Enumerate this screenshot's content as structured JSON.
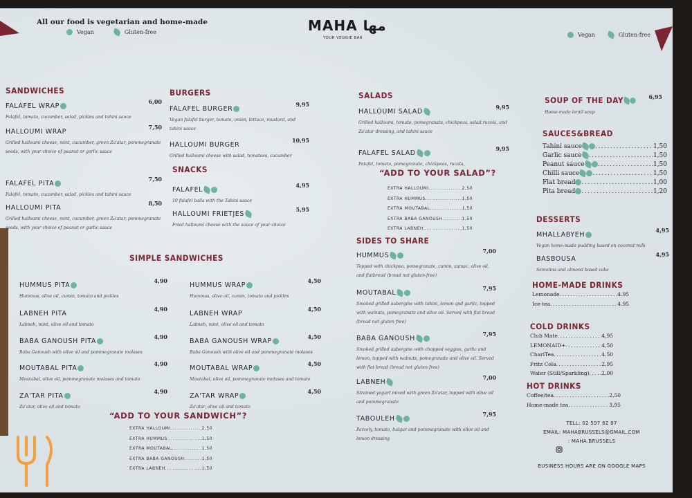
{
  "header": {
    "tagline": "All our food is vegetarian and home-made",
    "legend": {
      "vegan": "Vegan",
      "gluten_free": "Gluten-free"
    },
    "logo": "MAHA مها",
    "logo_sub": "YOUR VEGGIE BAR"
  },
  "colors": {
    "accent": "#7b2433",
    "vegan_icon": "#6db3a0",
    "paper": "#dfe6ea"
  },
  "sections": {
    "sandwiches": {
      "title": "SANDWICHES",
      "items": [
        {
          "name": "FALAFEL WRAP",
          "price": "6,00",
          "desc": "Falafel, tomato, cucumber, salad, pickles and tahini sauce",
          "vegan": true,
          "gf": false
        },
        {
          "name": "HALLOUMI WRAP",
          "price": "7,50",
          "desc": "Grilled halloumi cheese, mint, cucumber, green Za'atar, pommegranate seeds, with your choice of peanut or garlic sauce",
          "vegan": false,
          "gf": false
        },
        {
          "name": "FALAFEL PITA",
          "price": "7,50",
          "desc": "Falafel, tomato, cucumber, salad, pickles and tahini sauce",
          "vegan": true,
          "gf": false
        },
        {
          "name": "HALLOUMI PITA",
          "price": "8,50",
          "desc": "Grilled halloumi cheese, mint, cucumber, green Za'atar, pommegranate seeds, with your choice of peanut or garlic sauce",
          "vegan": false,
          "gf": false
        }
      ]
    },
    "burgers": {
      "title": "BURGERS",
      "items": [
        {
          "name": "FALAFEL BURGER",
          "price": "9,95",
          "desc": "Vegan falafel burger, tomato, onion, lettuce, mustard, and tahini sauce",
          "vegan": true,
          "gf": false
        },
        {
          "name": "HALLOUMI BURGER",
          "price": "10,95",
          "desc": "Grilled halloumi cheese with salad, tomatoes, cucumber",
          "vegan": false,
          "gf": false
        }
      ]
    },
    "snacks": {
      "title": "SNACKS",
      "items": [
        {
          "name": "FALAFEL",
          "price": "4,95",
          "desc": "10 falafel balls with the Tahini sauce",
          "vegan": true,
          "gf": true
        },
        {
          "name": "HALLOUMI FRIETJES",
          "price": "5,95",
          "desc": "Fried halloumi cheese with the sauce of your choice",
          "vegan": false,
          "gf": true
        }
      ]
    },
    "simple_sandwiches": {
      "title": "SIMPLE SANDWICHES"
    },
    "pitas": {
      "items": [
        {
          "name": "HUMMUS PITA",
          "price": "4,90",
          "desc": "Hummus, olive oil, cumin, tomato and pickles",
          "vegan": true,
          "gf": false
        },
        {
          "name": "LABNEH PITA",
          "price": "4,90",
          "desc": "Labneh, mint, olive oil and tomato",
          "vegan": false,
          "gf": false
        },
        {
          "name": "BABA GANOUSH PITA",
          "price": "4,90",
          "desc": "Baba Ganoush with olive oil and pommegranate molases",
          "vegan": true,
          "gf": false
        },
        {
          "name": "MOUTABAL PITA",
          "price": "4,90",
          "desc": "Moutabal, olive oil, pommegranate molases and tomato",
          "vegan": true,
          "gf": false
        },
        {
          "name": "ZA'TAR PITA",
          "price": "4,90",
          "desc": "Za'atar, olive oil and tomato",
          "vegan": true,
          "gf": false
        }
      ]
    },
    "wraps": {
      "items": [
        {
          "name": "HUMMUS WRAP",
          "price": "4,50",
          "desc": "Hummus, olive oil, cumin, tomato and pickles",
          "vegan": true,
          "gf": false
        },
        {
          "name": "LABNEH WRAP",
          "price": "4,50",
          "desc": "Labneh, mint, olive oil and tomato",
          "vegan": false,
          "gf": false
        },
        {
          "name": "BABA GANOUSH WRAP",
          "price": "4,50",
          "desc": "Baba Ganoush with olive oil and pommegranate molases",
          "vegan": true,
          "gf": false
        },
        {
          "name": "MOUTABAL WRAP",
          "price": "4,50",
          "desc": "Moutabal, olive oil, pommegranate molases and tomato",
          "vegan": true,
          "gf": false
        },
        {
          "name": "ZA'TAR WRAP",
          "price": "4,50",
          "desc": "Za'atar, olive oil and tomato",
          "vegan": true,
          "gf": false
        }
      ]
    },
    "add_sandwich": {
      "title": "“ADD TO YOUR SANDWICH”?",
      "items": [
        {
          "name": "EXTRA HALLOUMI",
          "price": "2,50"
        },
        {
          "name": "EXTRA HUMMUS",
          "price": "1,50"
        },
        {
          "name": "EXTRA MOUTABAL",
          "price": "1,50"
        },
        {
          "name": "EXTRA BABA GANOUSH",
          "price": "1,50"
        },
        {
          "name": "EXTRA LABNEH",
          "price": "1,50"
        }
      ]
    },
    "salads": {
      "title": "SALADS",
      "items": [
        {
          "name": "HALLOUMI SALAD",
          "price": "9,95",
          "desc": "Grilled halloumi, tomato, pomegranate, chickpeas, salad,rucola, and Za'atar dressing, and tahini sauce",
          "vegan": false,
          "gf": true
        },
        {
          "name": "FALAFEL SALAD",
          "price": "9,95",
          "desc": "Falafel, tomato, pomegranate, chickpeas, rucola,",
          "vegan": true,
          "gf": true
        }
      ]
    },
    "add_salad": {
      "title": "“ADD TO YOUR SALAD”?",
      "items": [
        {
          "name": "EXTRA HALLOUMI",
          "price": "2,50"
        },
        {
          "name": "EXTRA HUMMUS",
          "price": "1,50"
        },
        {
          "name": "EXTRA MOUTABAL",
          "price": "1,50"
        },
        {
          "name": "EXTRA BABA GANOUSH",
          "price": "1,50"
        },
        {
          "name": "EXTRA LABNEH",
          "price": "1,50"
        }
      ]
    },
    "sides": {
      "title": "SIDES TO SHARE",
      "items": [
        {
          "name": "HUMMUS",
          "price": "7,00",
          "desc": "Topped with chickpea, pomegranate, cumin, sumac, olive oil, and flatbread (bread not gluten-free)",
          "vegan": true,
          "gf": true
        },
        {
          "name": "MOUTABAL",
          "price": "7,95",
          "desc": "Smoked grilled aubergine with tahini, lemon qnd garlic, topped with walnuts, pomegranate and olive oil. Served with flat bread (bread not gluten free)",
          "vegan": true,
          "gf": true
        },
        {
          "name": "BABA GANOUSH",
          "price": "7,95",
          "desc": "Smoked grilled aubergine with chopped veggies, garlic and lemon, topped with walnuts, pomegranate and olive oil. Served with flat bread (bread not gluten free)",
          "vegan": true,
          "gf": true
        },
        {
          "name": "LABNEH",
          "price": "7,00",
          "desc": "Strained yogurt mixed with green Za'atar, topped with olive oil and pommegranate",
          "vegan": false,
          "gf": true
        },
        {
          "name": "TABOULEH",
          "price": "7,95",
          "desc": "Parcely, tomato, bulgur and pommegranate with olive oil and lemon dressing",
          "vegan": true,
          "gf": true
        }
      ]
    },
    "soup": {
      "title": "SOUP OF THE DAY",
      "price": "6,95",
      "desc": "Home-made lentil soup",
      "vegan": true,
      "gf": true
    },
    "sauces": {
      "title": "SAUCES&BREAD",
      "items": [
        {
          "name": "Tahini sauce",
          "price": "1,50",
          "vegan": true,
          "gf": true
        },
        {
          "name": "Garlic sauce",
          "price": "1,50",
          "vegan": false,
          "gf": true
        },
        {
          "name": "Peanut sauce",
          "price": "1,50",
          "vegan": true,
          "gf": true
        },
        {
          "name": "Chilli sauce",
          "price": "1,50",
          "vegan": true,
          "gf": true
        },
        {
          "name": "Flat bread",
          "price": "1,00",
          "vegan": true,
          "gf": false
        },
        {
          "name": "Pita bread",
          "price": "1,20",
          "vegan": true,
          "gf": false
        }
      ]
    },
    "desserts": {
      "title": "DESSERTS",
      "items": [
        {
          "name": "MHALLABYEH",
          "price": "4,95",
          "desc": "Vegan home-made pudding based on coconut milk",
          "vegan": true,
          "gf": false
        },
        {
          "name": "BASBOUSA",
          "price": "4,95",
          "desc": "Semolina and almond based cake",
          "vegan": false,
          "gf": false
        }
      ]
    },
    "homemade_drinks": {
      "title": "HOME-MADE DRINKS",
      "items": [
        {
          "name": "Lemonade",
          "price": "4.95"
        },
        {
          "name": "Ice-tea",
          "price": "4.95"
        }
      ]
    },
    "cold_drinks": {
      "title": "COLD DRINKS",
      "items": [
        {
          "name": "Club Mate",
          "price": "4,95"
        },
        {
          "name": "LEMONAID+",
          "price": "4,50"
        },
        {
          "name": "ChariTea",
          "price": "4,50"
        },
        {
          "name": "Fritz Cola",
          "price": "2,95"
        },
        {
          "name": "Water (Still/Sparkling)",
          "price": "2,00"
        }
      ]
    },
    "hot_drinks": {
      "title": "HOT DRINKS",
      "items": [
        {
          "name": "Coffee/tea",
          "price": "2,50"
        },
        {
          "name": "Home-made tea",
          "price": "3,95"
        }
      ]
    }
  },
  "contact": {
    "tel": "TELL: 02 597 62 87",
    "email": "EMAIL: MAHABRUSSELS@GMAIL.COM",
    "instagram": ": MAHA.BRUSSELS",
    "hours": "BUSINESS HOURS ARE ON GOOGLE MAPS"
  }
}
